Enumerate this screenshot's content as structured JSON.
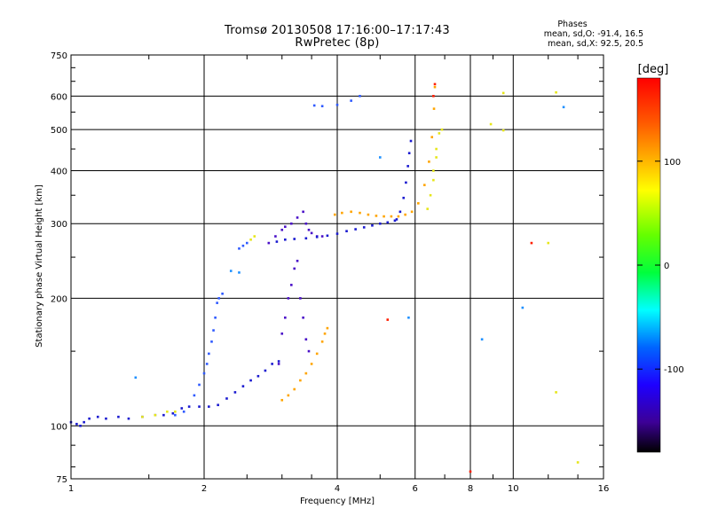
{
  "header": {
    "title": "Tromsø 20130508 17:16:00–17:17:43",
    "subtitle": "RwPretec (8p)"
  },
  "phases_box": {
    "heading": "Phases",
    "line_o": "mean, sd,O: -91.4, 16.5",
    "line_x": "mean, sd,X:  92.5, 20.5"
  },
  "colorbar": {
    "unit_label": "[deg]",
    "tick_labels": [
      "100",
      "0",
      "-100"
    ],
    "ticks": [
      100,
      0,
      -100
    ],
    "range": [
      -180,
      180
    ]
  },
  "colors": {
    "dark_blue": "#1a1ad0",
    "blue": "#2f5aff",
    "cyan_blue": "#1e90ff",
    "purple": "#4a10c8",
    "yellow": "#e6e619",
    "orange": "#ffa500",
    "orange_red": "#ff6a00",
    "red": "#ff1e00"
  },
  "chart_data": {
    "type": "scatter",
    "title": "Tromsø 20130508 17:16:00–17:17:43",
    "subtitle": "RwPretec (8p)",
    "xlabel": "Frequency [MHz]",
    "ylabel": "Stationary phase Virtual Height [km]",
    "x_scale": "log",
    "y_scale": "log",
    "xlim": [
      1,
      16
    ],
    "ylim": [
      75,
      750
    ],
    "x_ticks": [
      1,
      2,
      4,
      6,
      8,
      10,
      16
    ],
    "x_tick_labels": [
      "1",
      "2",
      "4",
      "6",
      "8",
      "10",
      "16"
    ],
    "y_ticks": [
      75,
      100,
      200,
      300,
      400,
      500,
      600,
      750
    ],
    "y_tick_labels": [
      "75",
      "100",
      "200",
      "300",
      "400",
      "500",
      "600",
      "750"
    ],
    "grid": "major",
    "color_scale": "phase [deg], -180 to 180",
    "series": [
      {
        "color": "dark_blue",
        "points": [
          [
            1.0,
            102
          ],
          [
            1.03,
            101
          ],
          [
            1.05,
            100
          ],
          [
            1.07,
            102
          ],
          [
            1.1,
            104
          ],
          [
            1.15,
            105
          ],
          [
            1.2,
            104
          ],
          [
            1.28,
            105
          ],
          [
            1.35,
            104
          ],
          [
            1.45,
            105
          ],
          [
            1.55,
            106
          ],
          [
            1.62,
            106
          ],
          [
            1.7,
            107
          ],
          [
            1.78,
            110
          ],
          [
            1.85,
            111
          ],
          [
            1.95,
            111
          ],
          [
            2.05,
            111
          ],
          [
            2.15,
            112
          ],
          [
            2.25,
            116
          ],
          [
            2.35,
            120
          ],
          [
            2.45,
            124
          ],
          [
            2.55,
            128
          ],
          [
            2.65,
            131
          ],
          [
            2.75,
            135
          ],
          [
            2.85,
            140
          ],
          [
            2.95,
            142
          ]
        ]
      },
      {
        "color": "blue",
        "points": [
          [
            1.72,
            106
          ],
          [
            1.8,
            108
          ],
          [
            1.9,
            118
          ],
          [
            1.95,
            125
          ],
          [
            2.0,
            133
          ],
          [
            2.03,
            140
          ],
          [
            2.05,
            148
          ],
          [
            2.08,
            158
          ],
          [
            2.1,
            168
          ],
          [
            2.12,
            180
          ],
          [
            2.14,
            195
          ],
          [
            2.16,
            200
          ],
          [
            2.2,
            205
          ],
          [
            2.4,
            262
          ],
          [
            2.45,
            266
          ],
          [
            2.5,
            270
          ]
        ]
      },
      {
        "color": "purple",
        "points": [
          [
            2.8,
            270
          ],
          [
            2.9,
            280
          ],
          [
            3.0,
            290
          ],
          [
            3.05,
            295
          ],
          [
            3.15,
            300
          ],
          [
            3.25,
            310
          ],
          [
            3.35,
            320
          ],
          [
            3.4,
            300
          ],
          [
            3.45,
            290
          ],
          [
            3.5,
            285
          ],
          [
            3.6,
            280
          ],
          [
            3.7,
            280
          ]
        ]
      },
      {
        "color": "dark_blue",
        "points": [
          [
            2.92,
            272
          ],
          [
            3.05,
            275
          ],
          [
            3.2,
            276
          ],
          [
            3.4,
            277
          ],
          [
            3.6,
            279
          ],
          [
            3.8,
            281
          ],
          [
            4.0,
            284
          ],
          [
            4.2,
            288
          ],
          [
            4.4,
            291
          ],
          [
            4.6,
            294
          ],
          [
            4.8,
            297
          ],
          [
            5.0,
            300
          ],
          [
            5.2,
            302
          ],
          [
            5.4,
            305
          ]
        ]
      },
      {
        "color": "dark_blue",
        "points": [
          [
            5.45,
            307
          ],
          [
            5.55,
            320
          ],
          [
            5.65,
            345
          ],
          [
            5.72,
            375
          ],
          [
            5.78,
            410
          ],
          [
            5.82,
            440
          ],
          [
            5.87,
            470
          ]
        ]
      },
      {
        "color": "purple",
        "points": [
          [
            2.95,
            140
          ],
          [
            3.0,
            165
          ],
          [
            3.05,
            180
          ],
          [
            3.1,
            200
          ],
          [
            3.15,
            215
          ],
          [
            3.2,
            235
          ],
          [
            3.25,
            245
          ],
          [
            3.3,
            200
          ],
          [
            3.35,
            180
          ],
          [
            3.4,
            160
          ],
          [
            3.45,
            150
          ]
        ]
      },
      {
        "color": "blue",
        "points": [
          [
            3.55,
            570
          ],
          [
            3.7,
            568
          ],
          [
            4.0,
            572
          ],
          [
            4.3,
            585
          ],
          [
            4.5,
            600
          ]
        ]
      },
      {
        "color": "orange",
        "points": [
          [
            3.95,
            315
          ],
          [
            4.1,
            318
          ],
          [
            4.3,
            320
          ],
          [
            4.5,
            318
          ],
          [
            4.7,
            315
          ],
          [
            4.9,
            313
          ],
          [
            5.1,
            312
          ],
          [
            5.3,
            312
          ],
          [
            5.5,
            312
          ],
          [
            5.7,
            315
          ],
          [
            5.9,
            320
          ],
          [
            6.1,
            335
          ],
          [
            6.3,
            370
          ],
          [
            6.45,
            420
          ],
          [
            6.55,
            480
          ],
          [
            6.62,
            560
          ],
          [
            6.65,
            630
          ]
        ]
      },
      {
        "color": "yellow",
        "points": [
          [
            6.4,
            325
          ],
          [
            6.5,
            350
          ],
          [
            6.6,
            400
          ],
          [
            6.7,
            450
          ],
          [
            6.8,
            490
          ],
          [
            6.9,
            500
          ],
          [
            6.7,
            430
          ],
          [
            6.6,
            380
          ]
        ]
      },
      {
        "color": "orange",
        "points": [
          [
            3.0,
            115
          ],
          [
            3.1,
            118
          ],
          [
            3.2,
            122
          ],
          [
            3.3,
            128
          ],
          [
            3.4,
            133
          ],
          [
            3.5,
            140
          ],
          [
            3.6,
            148
          ],
          [
            3.7,
            158
          ],
          [
            3.75,
            165
          ],
          [
            3.8,
            170
          ]
        ]
      },
      {
        "color": "yellow",
        "points": [
          [
            1.45,
            105
          ],
          [
            1.55,
            106
          ],
          [
            1.65,
            108
          ],
          [
            1.72,
            108
          ],
          [
            2.55,
            275
          ],
          [
            2.6,
            280
          ],
          [
            9.5,
            610
          ],
          [
            12.5,
            612
          ],
          [
            8.9,
            515
          ],
          [
            9.5,
            498
          ],
          [
            12.0,
            270
          ],
          [
            12.5,
            120
          ],
          [
            14.0,
            82
          ]
        ]
      },
      {
        "color": "red",
        "points": [
          [
            5.2,
            178
          ],
          [
            6.6,
            600
          ],
          [
            8.0,
            78
          ],
          [
            11.0,
            270
          ],
          [
            6.65,
            640
          ]
        ]
      },
      {
        "color": "cyan_blue",
        "points": [
          [
            1.4,
            130
          ],
          [
            2.3,
            232
          ],
          [
            2.4,
            230
          ],
          [
            5.0,
            430
          ],
          [
            5.8,
            180
          ],
          [
            8.5,
            160
          ],
          [
            10.5,
            190
          ],
          [
            13.0,
            565
          ]
        ]
      }
    ]
  }
}
